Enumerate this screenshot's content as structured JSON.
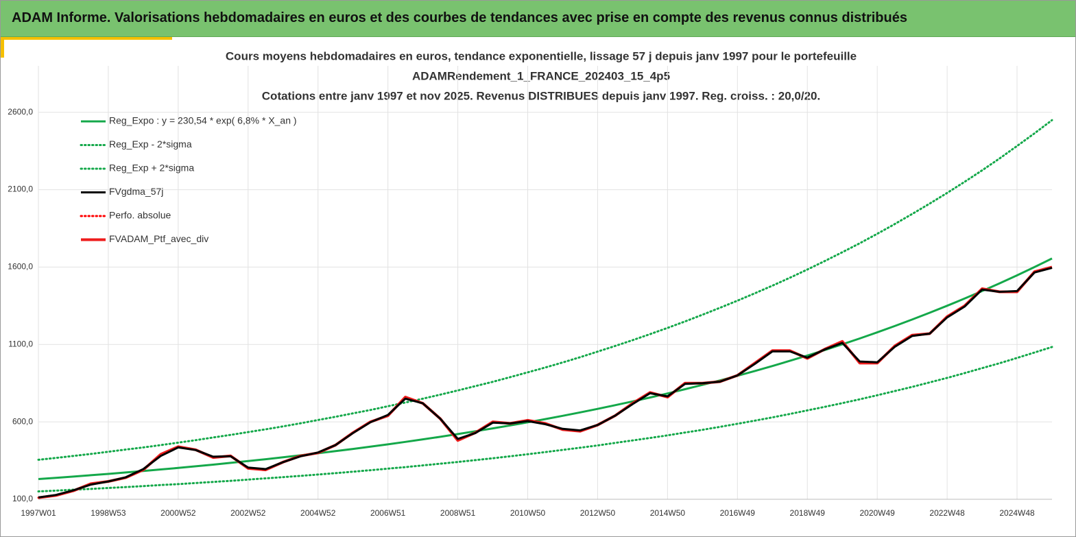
{
  "header": {
    "title": "ADAM Informe. Valorisations hebdomadaires en euros et des courbes de tendances avec prise en compte des revenus connus distribués"
  },
  "chart_data": {
    "type": "line",
    "title": [
      "Cours moyens hebdomadaires  en euros, tendance exponentielle, lissage 57 j depuis janv 1997 pour le portefeuille",
      "ADAMRendement_1_FRANCE_202403_15_4p5",
      "Cotations  entre janv 1997 et nov 2025. Revenus DISTRIBUES depuis janv 1997. Reg. croiss. : 20,0/20."
    ],
    "categories": [
      "1997W01",
      null,
      null,
      null,
      "1998W53",
      null,
      null,
      null,
      "2000W52",
      null,
      null,
      null,
      "2002W52",
      null,
      null,
      null,
      "2004W52",
      null,
      null,
      null,
      "2006W51",
      null,
      null,
      null,
      "2008W51",
      null,
      null,
      null,
      "2010W50",
      null,
      null,
      null,
      "2012W50",
      null,
      null,
      null,
      "2014W50",
      null,
      null,
      null,
      "2016W49",
      null,
      null,
      null,
      "2018W49",
      null,
      null,
      null,
      "2020W49",
      null,
      null,
      null,
      "2022W48",
      null,
      null,
      null,
      "2024W48",
      null,
      null
    ],
    "ylim": [
      100,
      2900
    ],
    "yticks": [
      {
        "value": 100,
        "label": "100,0"
      },
      {
        "value": 600,
        "label": "600,0"
      },
      {
        "value": 1100,
        "label": "1100,0"
      },
      {
        "value": 1600,
        "label": "1600,0"
      },
      {
        "value": 2100,
        "label": "2100,0"
      },
      {
        "value": 2600,
        "label": "2600,0"
      }
    ],
    "grid": true,
    "legend": "top-left",
    "series": [
      {
        "name": "Reg_Expo : y = 230,54 * exp( 6,8% *  X_an )",
        "color": "#14a84a",
        "style": "solid",
        "values": [
          230.5,
          238.5,
          246.7,
          255.3,
          264.1,
          273.2,
          282.7,
          292.5,
          302.6,
          313.0,
          323.9,
          335.1,
          346.6,
          358.6,
          371.0,
          383.9,
          397.1,
          410.9,
          425.1,
          439.8,
          455.0,
          470.7,
          487.0,
          503.8,
          521.3,
          539.3,
          557.9,
          577.2,
          597.2,
          617.8,
          639.2,
          661.3,
          684.1,
          707.8,
          732.3,
          757.6,
          783.8,
          810.9,
          838.9,
          867.9,
          897.9,
          928.9,
          961.0,
          994.3,
          1028.7,
          1064.2,
          1101.0,
          1139.1,
          1178.5,
          1219.2,
          1261.4,
          1305.0,
          1350.1,
          1396.8,
          1445.1,
          1495.0,
          1546.7,
          1600.2,
          1655.5
        ]
      },
      {
        "name": "Reg_Exp - 2*sigma",
        "color": "#14a84a",
        "style": "dotted",
        "values": [
          151,
          156,
          162,
          167,
          173,
          179,
          185,
          192,
          198,
          205,
          212,
          219,
          227,
          235,
          243,
          251,
          260,
          269,
          278,
          288,
          298,
          308,
          319,
          330,
          341,
          353,
          365,
          378,
          391,
          405,
          419,
          433,
          448,
          464,
          480,
          496,
          513,
          531,
          549,
          568,
          588,
          608,
          629,
          651,
          674,
          697,
          721,
          746,
          772,
          799,
          826,
          855,
          884,
          915,
          947,
          979,
          1013,
          1048,
          1084
        ]
      },
      {
        "name": "Reg_Exp + 2*sigma",
        "color": "#14a84a",
        "style": "dotted",
        "values": [
          355,
          367,
          380,
          393,
          407,
          421,
          435,
          450,
          466,
          482,
          499,
          516,
          534,
          552,
          571,
          591,
          612,
          633,
          655,
          677,
          701,
          725,
          750,
          776,
          803,
          831,
          859,
          889,
          920,
          951,
          984,
          1018,
          1054,
          1090,
          1128,
          1167,
          1207,
          1249,
          1292,
          1337,
          1383,
          1431,
          1480,
          1531,
          1584,
          1639,
          1696,
          1754,
          1815,
          1878,
          1943,
          2010,
          2079,
          2151,
          2225,
          2302,
          2382,
          2464,
          2549
        ]
      },
      {
        "name": "FVgdma_57j",
        "color": "#000000",
        "style": "solid",
        "values": [
          112,
          128,
          158,
          195,
          215,
          242,
          295,
          380,
          435,
          418,
          375,
          378,
          305,
          295,
          340,
          378,
          402,
          450,
          528,
          598,
          645,
          750,
          720,
          620,
          490,
          528,
          595,
          590,
          605,
          585,
          555,
          545,
          580,
          640,
          715,
          785,
          765,
          845,
          850,
          860,
          900,
          975,
          1055,
          1055,
          1015,
          1068,
          1110,
          990,
          985,
          1085,
          1155,
          1170,
          1275,
          1345,
          1455,
          1440,
          1445,
          1565,
          1595
        ]
      },
      {
        "name": "Perfo. absolue",
        "color": "#ff0000",
        "style": "dotted",
        "values": [
          110,
          125,
          155,
          200,
          215,
          240,
          290,
          390,
          440,
          420,
          370,
          380,
          300,
          290,
          340,
          380,
          400,
          450,
          530,
          600,
          640,
          760,
          720,
          620,
          480,
          530,
          600,
          590,
          610,
          590,
          550,
          540,
          580,
          640,
          720,
          790,
          760,
          850,
          850,
          860,
          900,
          980,
          1060,
          1060,
          1010,
          1070,
          1120,
          980,
          980,
          1090,
          1160,
          1170,
          1280,
          1350,
          1460,
          1440,
          1440,
          1570,
          1600
        ]
      },
      {
        "name": "FVADAM_Ptf_avec_div",
        "color": "#ee1c1c",
        "style": "thick",
        "values": [
          110,
          125,
          155,
          200,
          215,
          240,
          290,
          390,
          440,
          420,
          370,
          380,
          300,
          290,
          340,
          380,
          400,
          450,
          530,
          600,
          640,
          760,
          720,
          620,
          480,
          530,
          600,
          590,
          610,
          590,
          550,
          540,
          580,
          640,
          720,
          790,
          760,
          850,
          850,
          860,
          900,
          980,
          1060,
          1060,
          1010,
          1070,
          1120,
          980,
          980,
          1090,
          1160,
          1170,
          1280,
          1350,
          1460,
          1440,
          1440,
          1570,
          1600
        ]
      }
    ]
  }
}
